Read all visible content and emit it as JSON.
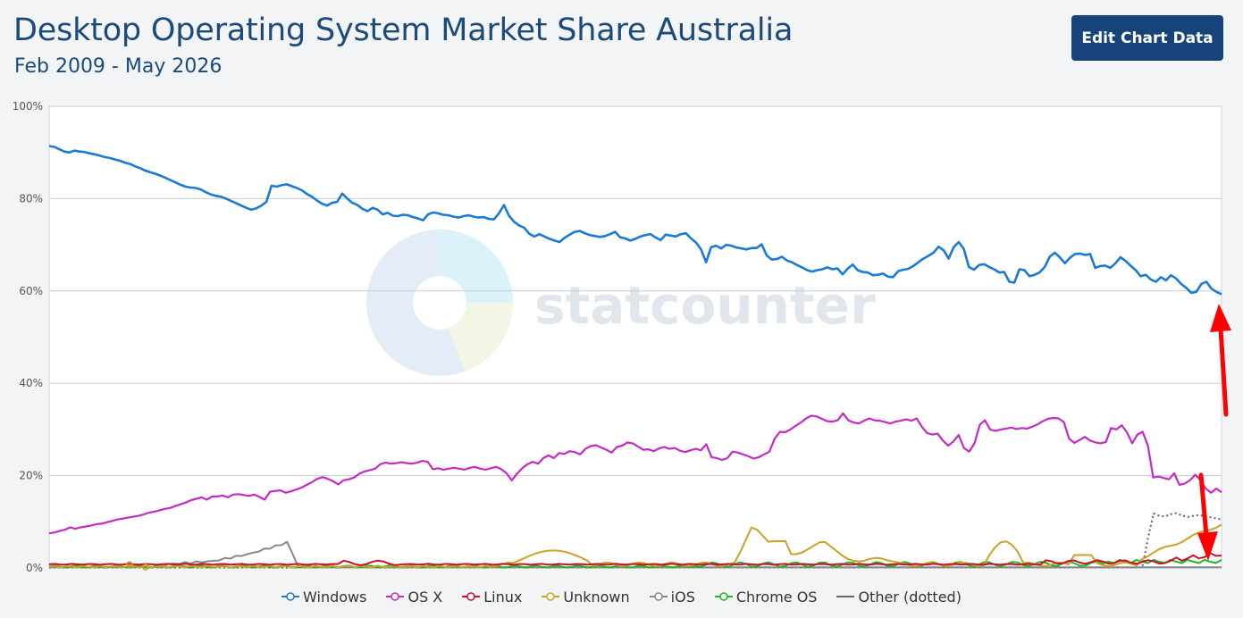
{
  "page": {
    "title": "Desktop Operating System Market Share Australia",
    "subtitle": "Feb 2009 - May 2026",
    "edit_button": "Edit Chart Data",
    "watermark": "statcounter"
  },
  "colors": {
    "Windows": "#1b7bd4",
    "OS X": "#c42ac4",
    "Linux": "#c8102e",
    "Unknown": "#c9a227",
    "iOS": "#888888",
    "Chrome OS": "#1fb81f",
    "Other": "#666666",
    "arrow": "#ff0000"
  },
  "chart_data": {
    "type": "line",
    "x_range": [
      "Feb 2009",
      "May 2026"
    ],
    "ylim": [
      0,
      100
    ],
    "y_ticks": [
      "0%",
      "20%",
      "40%",
      "60%",
      "80%",
      "100%"
    ],
    "grid": true,
    "legend": "bottom",
    "series": [
      {
        "name": "Windows",
        "points": [
          [
            0,
            91.4
          ],
          [
            0.05,
            90
          ],
          [
            0.1,
            88.5
          ],
          [
            0.15,
            86
          ],
          [
            0.18,
            83
          ],
          [
            0.21,
            81
          ],
          [
            0.24,
            78
          ],
          [
            0.27,
            82.8
          ],
          [
            0.29,
            82.5
          ],
          [
            0.31,
            80
          ],
          [
            0.33,
            78.5
          ],
          [
            0.35,
            80.5
          ],
          [
            0.37,
            77
          ],
          [
            0.39,
            77
          ],
          [
            0.41,
            76
          ],
          [
            0.43,
            75.5
          ],
          [
            0.45,
            76.2
          ],
          [
            0.47,
            76.5
          ],
          [
            0.49,
            75.2
          ],
          [
            0.5,
            79
          ],
          [
            0.52,
            73.5
          ],
          [
            0.54,
            71
          ],
          [
            0.56,
            72.5
          ],
          [
            0.58,
            71.5
          ],
          [
            0.6,
            72.5
          ],
          [
            0.62,
            71.5
          ],
          [
            0.64,
            72
          ],
          [
            0.66,
            72
          ],
          [
            0.68,
            72.5
          ],
          [
            0.7,
            70.5
          ],
          [
            0.72,
            70
          ],
          [
            0.735,
            65.5
          ],
          [
            0.745,
            69.5
          ],
          [
            0.76,
            70
          ],
          [
            0.78,
            69.2
          ],
          [
            0.8,
            70.5
          ],
          [
            0.81,
            67
          ],
          [
            0.83,
            66.5
          ],
          [
            0.85,
            64.5
          ],
          [
            0.87,
            65
          ],
          [
            0.88,
            63.5
          ],
          [
            0.9,
            64
          ],
          [
            0.92,
            65
          ],
          [
            0.94,
            65.5
          ],
          [
            0.95,
            64
          ],
          [
            0.96,
            63.5
          ],
          [
            0.98,
            64
          ],
          [
            1.0,
            64
          ]
        ],
        "note_x": "fraction of time span"
      }
    ],
    "series_names": [
      "Windows",
      "OS X",
      "Linux",
      "Unknown",
      "iOS",
      "Chrome OS",
      "Other (dotted)"
    ],
    "windows": [
      91.4,
      91.2,
      90.7,
      90.2,
      90.0,
      90.4,
      90.2,
      90.1,
      89.8,
      89.6,
      89.3,
      89.0,
      88.8,
      88.5,
      88.2,
      87.8,
      87.5,
      87.0,
      86.6,
      86.1,
      85.7,
      85.4,
      85.0,
      84.5,
      84.0,
      83.5,
      83.0,
      82.6,
      82.4,
      82.3,
      82.0,
      81.4,
      80.9,
      80.6,
      80.4,
      80.0,
      79.5,
      79.0,
      78.5,
      78.0,
      77.6,
      77.9,
      78.5,
      79.3,
      82.8,
      82.6,
      82.9,
      83.1,
      82.7,
      82.3,
      81.8,
      81.0,
      80.4,
      79.6,
      78.9,
      78.5,
      79.1,
      79.3,
      81.1,
      80.0,
      79.1,
      78.6,
      77.8,
      77.3,
      78.0,
      77.6,
      76.6,
      76.9,
      76.3,
      76.2,
      76.5,
      76.4,
      76.0,
      75.7,
      75.3,
      76.6,
      77.0,
      76.8,
      76.5,
      76.4,
      76.1,
      75.9,
      76.2,
      76.4,
      76.1,
      75.9,
      76.0,
      75.6,
      75.5,
      76.8,
      78.6,
      76.3,
      75.0,
      74.2,
      73.7,
      72.4,
      71.8,
      72.3,
      71.8,
      71.3,
      70.9,
      70.6,
      71.5,
      72.2,
      72.8,
      73.0,
      72.5,
      72.1,
      71.9,
      71.7,
      71.9,
      72.3,
      72.8,
      71.6,
      71.4,
      70.9,
      71.3,
      71.8,
      72.1,
      72.3,
      71.6,
      71.0,
      72.2,
      72.0,
      71.8,
      72.3,
      72.5,
      71.4,
      70.5,
      69.0,
      66.2,
      69.5,
      69.8,
      69.2,
      70.0,
      69.8,
      69.4,
      69.2,
      69.0,
      69.3,
      69.3,
      70.1,
      67.7,
      66.8,
      66.9,
      67.4,
      66.6,
      66.2,
      65.6,
      65.1,
      64.5,
      64.2,
      64.5,
      64.7,
      65.1,
      64.7,
      64.9,
      63.6,
      64.8,
      65.7,
      64.5,
      64.1,
      64.0,
      63.4,
      63.5,
      63.8,
      63.1,
      63.0,
      64.3,
      64.6,
      64.8,
      65.4,
      66.2,
      67.0,
      67.6,
      68.3,
      69.6,
      68.8,
      67.0,
      69.5,
      70.6,
      69.1,
      65.2,
      64.6,
      65.6,
      65.8,
      65.2,
      64.7,
      64.0,
      64.1,
      62.0,
      61.8,
      64.7,
      64.5,
      63.2,
      63.5,
      64.0,
      65.2,
      67.4,
      68.3,
      67.3,
      66.0,
      67.2,
      68.0,
      68.1,
      67.8,
      68.0,
      65.0,
      65.4,
      65.5,
      65.0,
      66.0,
      67.3,
      66.5,
      65.5,
      64.5,
      63.2,
      63.5,
      62.5,
      62.0,
      63.0,
      62.3,
      63.4,
      62.7,
      61.5,
      60.7,
      59.6,
      59.8,
      61.5,
      62.0,
      60.5,
      59.8,
      59.3
    ],
    "osx": [
      7.5,
      7.7,
      8.0,
      8.3,
      8.8,
      8.5,
      8.8,
      9.0,
      9.2,
      9.5,
      9.6,
      9.9,
      10.2,
      10.5,
      10.7,
      10.9,
      11.1,
      11.3,
      11.6,
      12.0,
      12.2,
      12.5,
      12.8,
      13.0,
      13.4,
      13.8,
      14.2,
      14.7,
      15.0,
      15.3,
      14.8,
      15.5,
      15.5,
      15.7,
      15.3,
      15.9,
      16.0,
      15.8,
      15.6,
      15.9,
      15.4,
      14.8,
      16.5,
      16.7,
      16.8,
      16.3,
      16.6,
      17.0,
      17.4,
      18.0,
      18.6,
      19.3,
      19.7,
      19.3,
      18.8,
      18.1,
      19.0,
      19.2,
      19.6,
      20.4,
      20.9,
      21.2,
      21.5,
      22.5,
      22.8,
      22.6,
      22.7,
      22.9,
      22.7,
      22.6,
      22.8,
      23.2,
      23.0,
      21.4,
      21.6,
      21.3,
      21.5,
      21.7,
      21.5,
      21.3,
      21.7,
      21.9,
      21.5,
      21.3,
      21.6,
      21.9,
      21.4,
      20.5,
      19.0,
      20.4,
      21.6,
      22.5,
      23.0,
      22.6,
      23.8,
      24.4,
      23.8,
      24.9,
      24.7,
      25.3,
      25.1,
      24.6,
      25.8,
      26.4,
      26.6,
      26.1,
      25.6,
      25.0,
      26.2,
      26.5,
      27.2,
      27.0,
      26.3,
      25.6,
      25.7,
      25.3,
      25.9,
      26.2,
      25.8,
      26.0,
      25.4,
      25.1,
      25.5,
      25.8,
      25.5,
      26.8,
      24.0,
      23.8,
      23.4,
      23.8,
      25.2,
      25.0,
      24.6,
      24.2,
      23.7,
      24.0,
      24.6,
      25.2,
      28.0,
      29.5,
      29.4,
      30.0,
      30.8,
      31.5,
      32.4,
      33.0,
      32.8,
      32.3,
      31.8,
      31.7,
      32.0,
      33.5,
      32.0,
      31.5,
      31.3,
      31.9,
      32.4,
      32.0,
      31.9,
      31.6,
      31.3,
      31.7,
      31.9,
      32.2,
      31.9,
      32.4,
      30.6,
      29.2,
      28.9,
      29.1,
      27.6,
      26.5,
      27.4,
      28.8,
      26.0,
      25.2,
      27.0,
      31.0,
      32.0,
      30.0,
      29.7,
      30.0,
      30.2,
      30.4,
      30.1,
      30.3,
      30.2,
      30.6,
      31.1,
      31.8,
      32.3,
      32.5,
      32.4,
      31.6,
      28.0,
      27.1,
      27.7,
      28.4,
      27.6,
      27.2,
      27.0,
      27.3,
      30.3,
      30.0,
      30.9,
      29.4,
      27.0,
      28.9,
      29.5,
      26.5,
      19.6,
      19.8,
      19.5,
      19.2,
      20.5,
      18.0,
      18.3,
      19.0,
      20.2,
      19.0,
      17.2,
      16.3,
      17.2,
      16.4
    ],
    "linux": {
      "base": 0.8,
      "tail": [
        1.5,
        1.8,
        2.1,
        2.5,
        2.8,
        3.0
      ]
    },
    "unknown_peaks": [
      [
        0.6,
        9.3
      ],
      [
        0.64,
        6.0
      ],
      [
        0.44,
        3.8
      ],
      [
        0.82,
        5.8
      ],
      [
        1.0,
        9.5
      ]
    ],
    "ios_hump": [
      [
        0.1,
        0.8
      ],
      [
        0.14,
        1.5
      ],
      [
        0.17,
        3.0
      ],
      [
        0.19,
        4.5
      ],
      [
        0.2,
        5.2
      ],
      [
        0.205,
        5.9
      ],
      [
        0.21,
        0.6
      ]
    ],
    "other_dotted_tail": [
      [
        0.935,
        2
      ],
      [
        0.94,
        12
      ],
      [
        0.95,
        11
      ],
      [
        0.96,
        12
      ],
      [
        0.97,
        11
      ],
      [
        0.98,
        11.5
      ],
      [
        1.0,
        10.5
      ]
    ]
  },
  "legend": [
    {
      "label": "Windows",
      "color": "#1b7bd4"
    },
    {
      "label": "OS X",
      "color": "#c42ac4"
    },
    {
      "label": "Linux",
      "color": "#c8102e"
    },
    {
      "label": "Unknown",
      "color": "#c9a227"
    },
    {
      "label": "iOS",
      "color": "#888888"
    },
    {
      "label": "Chrome OS",
      "color": "#1fb81f"
    },
    {
      "label": "Other (dotted)",
      "color": "#666666"
    }
  ]
}
